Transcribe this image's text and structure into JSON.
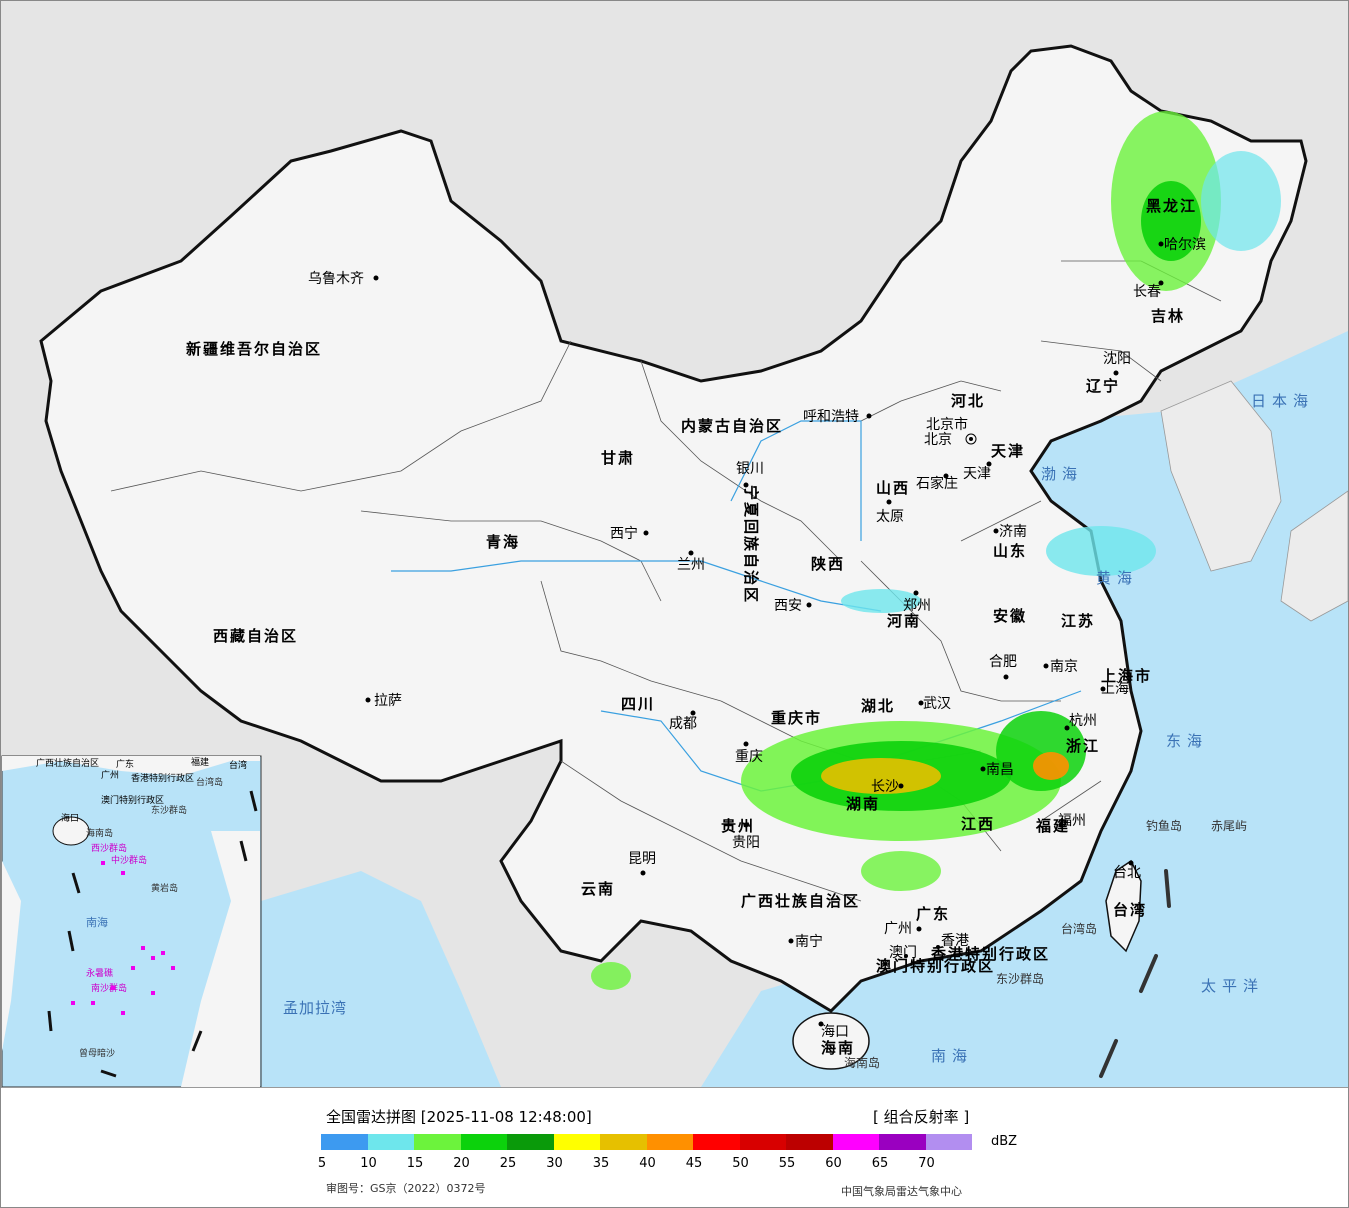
{
  "footer": {
    "title": "全国雷达拼图 [2025-11-08 12:48:00]",
    "product": "[ 组合反射率 ]",
    "unit": "dBZ",
    "review_number": "审图号：GS京（2022）0372号",
    "credit": "中国气象局雷达气象中心",
    "legend_colors": [
      "#3d9af0",
      "#6ee6ec",
      "#6cf33c",
      "#0cd20c",
      "#0a9a0a",
      "#ffff00",
      "#e6c000",
      "#ff9000",
      "#ff0000",
      "#d80000",
      "#bc0000",
      "#ff00ff",
      "#9a00c0",
      "#b28ef0"
    ],
    "legend_ticks": [
      "5",
      "10",
      "15",
      "20",
      "25",
      "30",
      "35",
      "40",
      "45",
      "50",
      "55",
      "60",
      "65",
      "70"
    ]
  },
  "map": {
    "colors": {
      "land": "#f5f5f5",
      "sea": "#b8e3f8",
      "outside": "#e5e5e5",
      "border": "#111111",
      "river": "#3aa0e0"
    },
    "cities": [
      {
        "name": "乌鲁木齐",
        "label": "乌鲁木齐"
      },
      {
        "name": "拉萨",
        "label": "拉萨"
      },
      {
        "name": "西宁",
        "label": "西宁"
      },
      {
        "name": "兰州",
        "label": "兰州"
      },
      {
        "name": "银川",
        "label": "银川"
      },
      {
        "name": "呼和浩特",
        "label": "呼和浩特"
      },
      {
        "name": "北京",
        "label": "北京"
      },
      {
        "name": "北京市",
        "label": "北京市"
      },
      {
        "name": "天津",
        "label": "天津"
      },
      {
        "name": "石家庄",
        "label": "石家庄"
      },
      {
        "name": "太原",
        "label": "太原"
      },
      {
        "name": "西安",
        "label": "西安"
      },
      {
        "name": "郑州",
        "label": "郑州"
      },
      {
        "name": "济南",
        "label": "济南"
      },
      {
        "name": "南京",
        "label": "南京"
      },
      {
        "name": "合肥",
        "label": "合肥"
      },
      {
        "name": "上海",
        "label": "上海"
      },
      {
        "name": "杭州",
        "label": "杭州"
      },
      {
        "name": "武汉",
        "label": "武汉"
      },
      {
        "name": "成都",
        "label": "成都"
      },
      {
        "name": "重庆",
        "label": "重庆"
      },
      {
        "name": "贵阳",
        "label": "贵阳"
      },
      {
        "name": "昆明",
        "label": "昆明"
      },
      {
        "name": "南宁",
        "label": "南宁"
      },
      {
        "name": "广州",
        "label": "广州"
      },
      {
        "name": "澳门",
        "label": "澳门"
      },
      {
        "name": "香港",
        "label": "香港"
      },
      {
        "name": "海口",
        "label": "海口"
      },
      {
        "name": "福州",
        "label": "福州"
      },
      {
        "name": "台北",
        "label": "台北"
      },
      {
        "name": "南昌",
        "label": "南昌"
      },
      {
        "name": "长沙",
        "label": "长沙"
      },
      {
        "name": "沈阳",
        "label": "沈阳"
      },
      {
        "name": "长春",
        "label": "长春"
      },
      {
        "name": "哈尔滨",
        "label": "哈尔滨"
      }
    ],
    "provinces": [
      "新疆维吾尔自治区",
      "西藏自治区",
      "青海",
      "甘肃",
      "内蒙古自治区",
      "宁夏回族自治区",
      "陕西",
      "山西",
      "河北",
      "北京市",
      "天津",
      "山东",
      "河南",
      "江苏",
      "安徽",
      "上海市",
      "浙江",
      "湖北",
      "湖南",
      "江西",
      "福建",
      "四川",
      "重庆市",
      "贵州",
      "云南",
      "广西壮族自治区",
      "广东",
      "海南",
      "台湾",
      "黑龙江",
      "吉林",
      "辽宁",
      "香港特别行政区",
      "澳门特别行政区"
    ],
    "seas": [
      "日本海",
      "渤海",
      "黄海",
      "东海",
      "南海",
      "太平洋",
      "孟加拉湾"
    ],
    "islands": [
      "钓鱼岛",
      "赤尾屿",
      "台湾岛",
      "东沙群岛",
      "海南岛"
    ],
    "inset_labels": [
      "广西壮族自治区",
      "广东",
      "福建",
      "台湾",
      "广州",
      "香港特别行政区",
      "澳门特别行政区",
      "台湾岛",
      "东沙群岛",
      "海口",
      "海南岛",
      "西沙群岛",
      "中沙群岛",
      "黄岩岛",
      "南海",
      "南沙群岛",
      "永暑礁",
      "曾母暗沙"
    ]
  }
}
